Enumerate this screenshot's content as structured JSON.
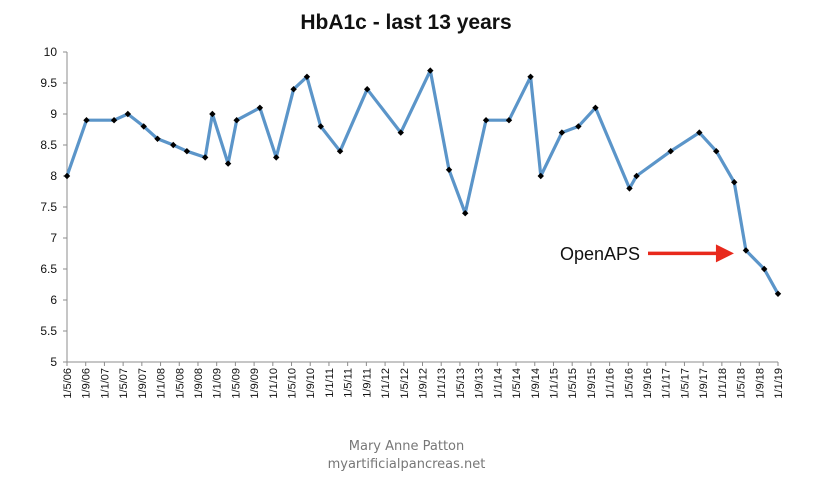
{
  "chart_data": {
    "type": "line",
    "title": "HbA1c - last 13 years",
    "xlabel": "",
    "ylabel": "",
    "ylim": [
      5,
      10
    ],
    "yticks": [
      "5",
      "5.5",
      "6",
      "6.5",
      "7",
      "7.5",
      "8",
      "8.5",
      "9",
      "9.5",
      "10"
    ],
    "xticks": [
      "1/5/06",
      "1/9/06",
      "1/1/07",
      "1/5/07",
      "1/9/07",
      "1/1/08",
      "1/5/08",
      "1/9/08",
      "1/1/09",
      "1/5/09",
      "1/9/09",
      "1/1/10",
      "1/5/10",
      "1/9/10",
      "1/1/11",
      "1/5/11",
      "1/9/11",
      "1/1/12",
      "1/5/12",
      "1/9/12",
      "1/1/13",
      "1/5/13",
      "1/9/13",
      "1/1/14",
      "1/5/14",
      "1/9/14",
      "1/1/15",
      "1/5/15",
      "1/9/15",
      "1/1/16",
      "1/5/16",
      "1/9/16",
      "1/1/17",
      "1/5/17",
      "1/9/17",
      "1/1/18",
      "1/5/18",
      "1/9/18",
      "1/1/19"
    ],
    "x_start": "2006-01-05",
    "x_end": "2019-01-01",
    "grid": false,
    "legend": "none",
    "line_color": "#5b95c9",
    "marker_color": "#000000",
    "series": [
      {
        "x": [
          "2006-01-05",
          "2006-05-15",
          "2006-11-15",
          "2007-02-15",
          "2007-06-01",
          "2007-09-01",
          "2007-12-15",
          "2008-03-15",
          "2008-07-15",
          "2008-09-01",
          "2008-12-15",
          "2009-02-10",
          "2009-07-15",
          "2009-11-01",
          "2010-02-25",
          "2010-05-25",
          "2010-08-25",
          "2011-01-01",
          "2011-07-01",
          "2012-02-10",
          "2012-08-25",
          "2012-12-28",
          "2013-04-15",
          "2013-09-01",
          "2014-02-01",
          "2014-06-25",
          "2014-09-01",
          "2015-01-20",
          "2015-05-10",
          "2015-09-01",
          "2016-04-15",
          "2016-06-01",
          "2017-01-15",
          "2017-07-25",
          "2017-11-15",
          "2018-03-15",
          "2018-06-01",
          "2018-10-01",
          "2019-01-01"
        ],
        "values": [
          8.0,
          8.9,
          8.9,
          9.0,
          8.8,
          8.6,
          8.5,
          8.4,
          8.3,
          9.0,
          8.2,
          8.9,
          9.1,
          8.3,
          9.4,
          9.6,
          8.8,
          8.4,
          9.4,
          8.7,
          9.7,
          8.1,
          7.4,
          8.9,
          8.9,
          9.6,
          8.0,
          8.7,
          8.8,
          9.1,
          7.8,
          8.0,
          8.4,
          8.7,
          8.4,
          7.9,
          6.8,
          6.5,
          6.1
        ]
      }
    ],
    "annotation": {
      "text": "OpenAPS",
      "points_to": {
        "x": "2018-06-01",
        "y": 6.8
      },
      "arrow_color": "#e8291c"
    }
  },
  "footer": {
    "author": "Mary Anne Patton",
    "website": "myartificialpancreas.net"
  }
}
